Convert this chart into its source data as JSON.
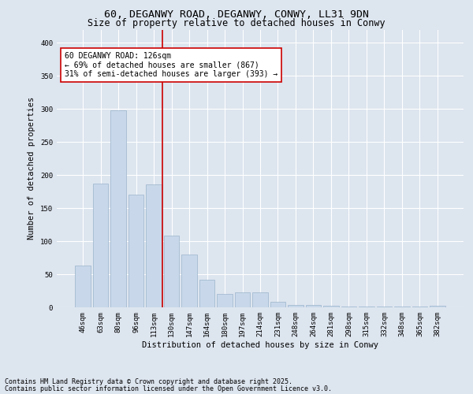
{
  "title1": "60, DEGANWY ROAD, DEGANWY, CONWY, LL31 9DN",
  "title2": "Size of property relative to detached houses in Conwy",
  "xlabel": "Distribution of detached houses by size in Conwy",
  "ylabel": "Number of detached properties",
  "categories": [
    "46sqm",
    "63sqm",
    "80sqm",
    "96sqm",
    "113sqm",
    "130sqm",
    "147sqm",
    "164sqm",
    "180sqm",
    "197sqm",
    "214sqm",
    "231sqm",
    "248sqm",
    "264sqm",
    "281sqm",
    "298sqm",
    "315sqm",
    "332sqm",
    "348sqm",
    "365sqm",
    "382sqm"
  ],
  "values": [
    63,
    187,
    298,
    170,
    186,
    108,
    80,
    42,
    20,
    23,
    23,
    8,
    4,
    4,
    2,
    1,
    1,
    1,
    1,
    1,
    2
  ],
  "bar_color": "#c8d8ea",
  "bar_edge_color": "#9ab4cc",
  "vline_index": 4.5,
  "vline_color": "#cc0000",
  "annotation_text": "60 DEGANWY ROAD: 126sqm\n← 69% of detached houses are smaller (867)\n31% of semi-detached houses are larger (393) →",
  "annotation_box_color": "#ffffff",
  "annotation_box_edge": "#cc0000",
  "background_color": "#dde5ef",
  "plot_bg_color": "#dde5ef",
  "ylim": [
    0,
    420
  ],
  "yticks": [
    0,
    50,
    100,
    150,
    200,
    250,
    300,
    350,
    400
  ],
  "footer1": "Contains HM Land Registry data © Crown copyright and database right 2025.",
  "footer2": "Contains public sector information licensed under the Open Government Licence v3.0.",
  "title1_fontsize": 9.5,
  "title2_fontsize": 8.5,
  "axis_label_fontsize": 7.5,
  "tick_fontsize": 6.5,
  "annotation_fontsize": 7.0,
  "footer_fontsize": 6.0
}
